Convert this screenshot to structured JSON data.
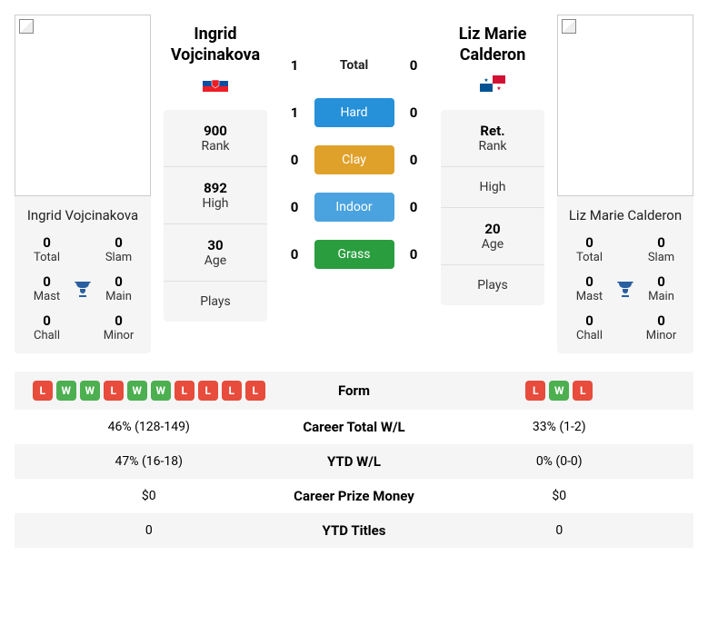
{
  "player1": {
    "name_line1": "Ingrid",
    "name_line2": "Vojcinakova",
    "full_name": "Ingrid Vojcinakova",
    "flag_colors": {
      "top": "#ffffff",
      "mid": "#0b4ea2",
      "bot": "#ee1c25",
      "shield": "#ee1c25"
    },
    "rank": "900",
    "high": "892",
    "age": "30",
    "plays": "",
    "titles": {
      "total": "0",
      "slam": "0",
      "mast": "0",
      "main": "0",
      "chall": "0",
      "minor": "0"
    },
    "form": [
      "L",
      "W",
      "W",
      "L",
      "W",
      "W",
      "L",
      "L",
      "L",
      "L"
    ]
  },
  "player2": {
    "name_line1": "Liz Marie",
    "name_line2": "Calderon",
    "full_name": "Liz Marie Calderon",
    "flag_colors": {
      "left": "#005293",
      "right": "#d21034",
      "star1": "#005293",
      "star2": "#d21034"
    },
    "rank": "Ret.",
    "high": "",
    "age": "20",
    "plays": "",
    "titles": {
      "total": "0",
      "slam": "0",
      "mast": "0",
      "main": "0",
      "chall": "0",
      "minor": "0"
    },
    "form": [
      "L",
      "W",
      "L"
    ]
  },
  "h2h": {
    "rows": [
      {
        "left": "1",
        "label": "Total",
        "right": "0",
        "class": "surf-total"
      },
      {
        "left": "1",
        "label": "Hard",
        "right": "0",
        "class": "surf-hard"
      },
      {
        "left": "0",
        "label": "Clay",
        "right": "0",
        "class": "surf-clay"
      },
      {
        "left": "0",
        "label": "Indoor",
        "right": "0",
        "class": "surf-indoor"
      },
      {
        "left": "0",
        "label": "Grass",
        "right": "0",
        "class": "surf-grass"
      }
    ]
  },
  "labels": {
    "rank": "Rank",
    "high": "High",
    "age": "Age",
    "plays": "Plays",
    "total": "Total",
    "slam": "Slam",
    "mast": "Mast",
    "main": "Main",
    "chall": "Chall",
    "minor": "Minor"
  },
  "table": {
    "rows": [
      {
        "key": "form",
        "center": "Form"
      },
      {
        "left": "46% (128-149)",
        "center": "Career Total W/L",
        "right": "33% (1-2)"
      },
      {
        "left": "47% (16-18)",
        "center": "YTD W/L",
        "right": "0% (0-0)"
      },
      {
        "left": "$0",
        "center": "Career Prize Money",
        "right": "$0"
      },
      {
        "left": "0",
        "center": "YTD Titles",
        "right": "0"
      }
    ]
  },
  "colors": {
    "badge_W": "#4caf50",
    "badge_L": "#e74c3c",
    "trophy": "#2a5fa0"
  }
}
